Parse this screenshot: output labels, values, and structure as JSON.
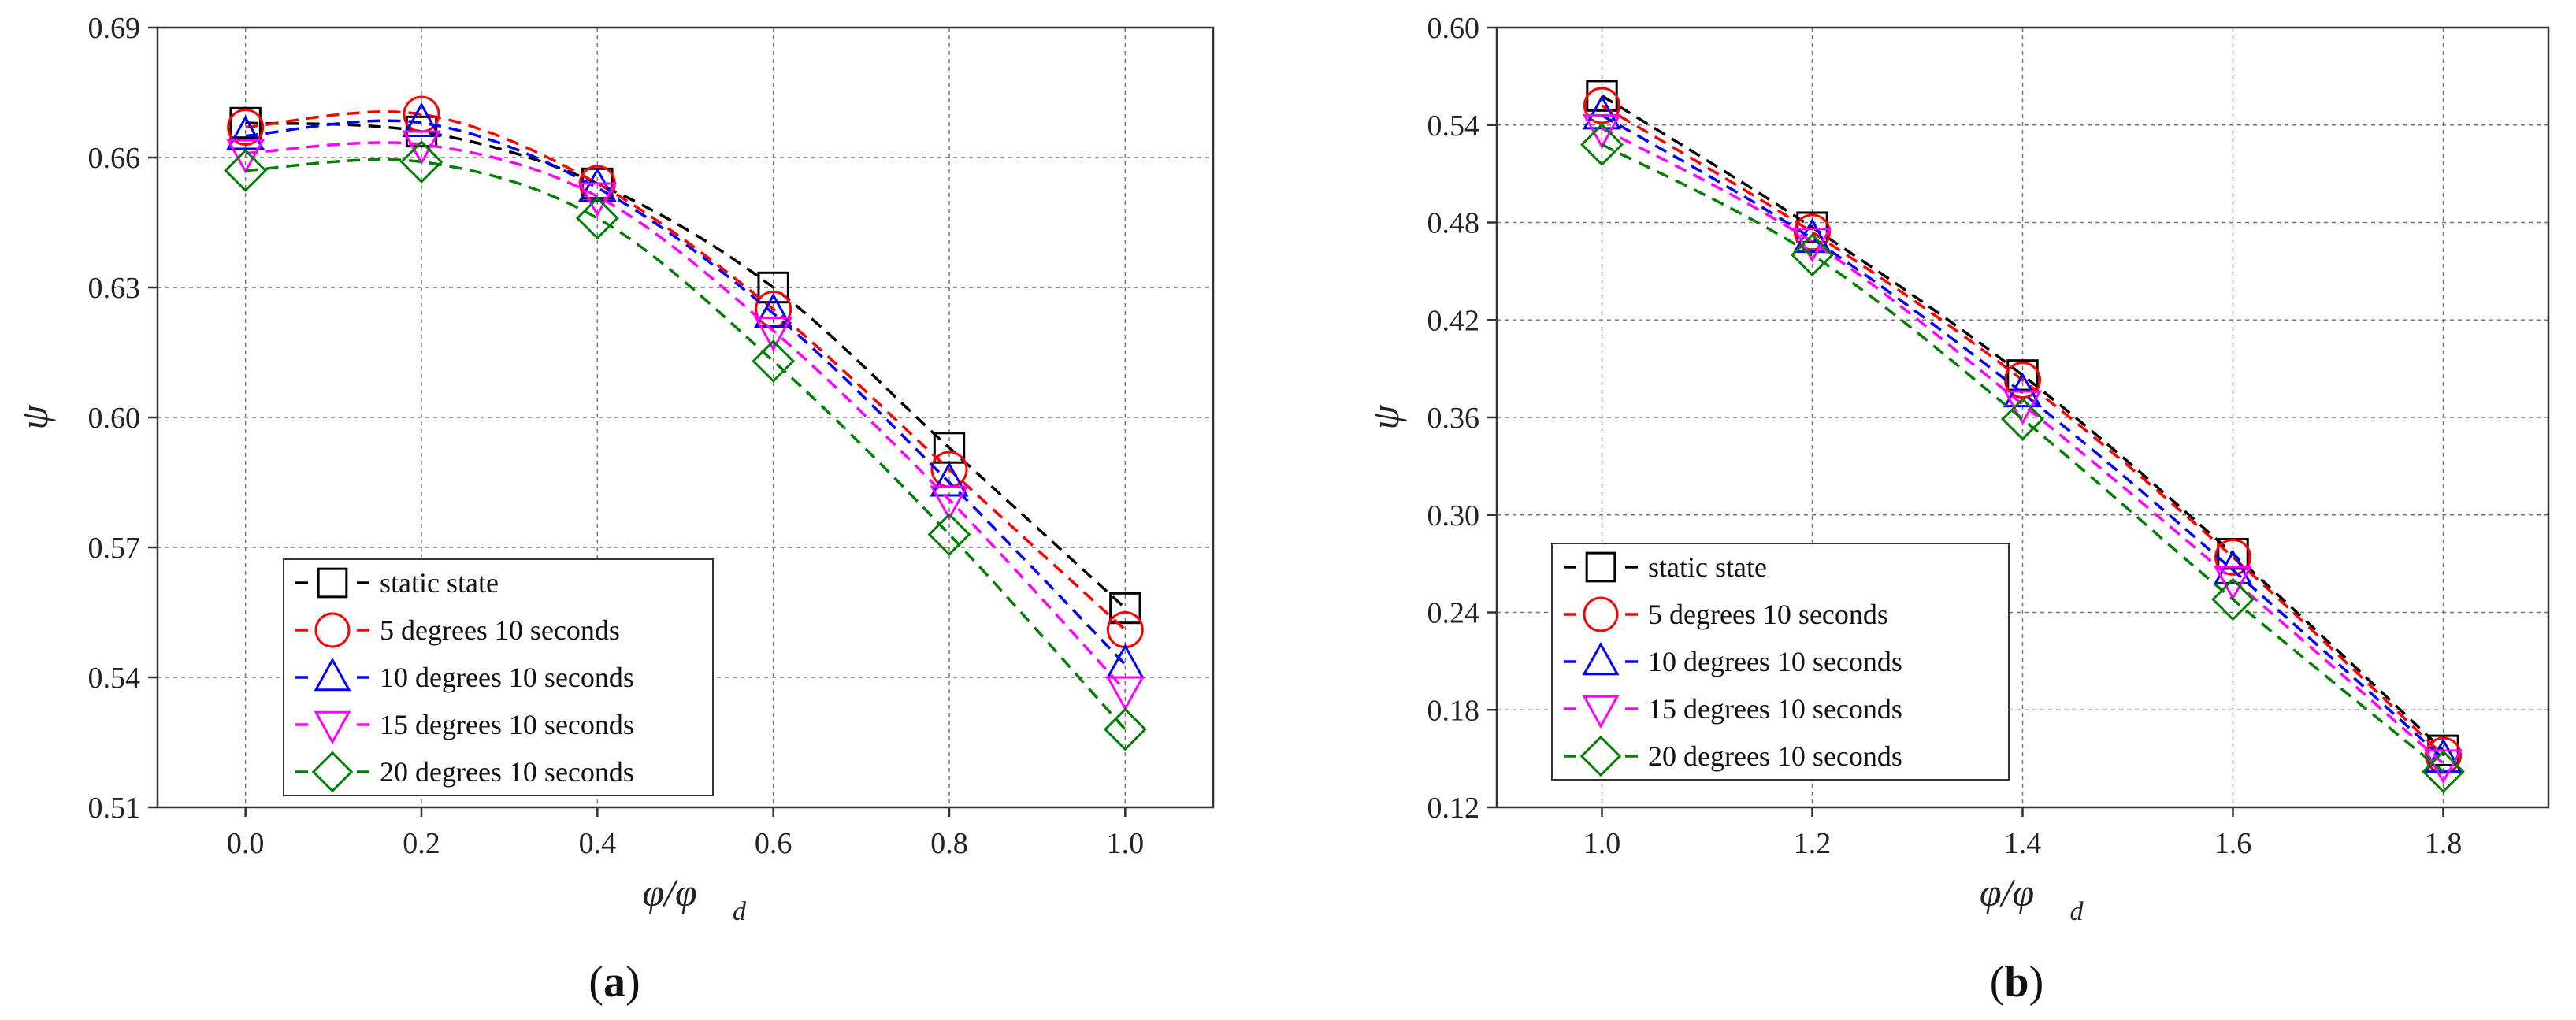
{
  "chart_data": [
    {
      "type": "line",
      "panel_label": "a",
      "xlabel": "φ/φ",
      "xlabel_sub": "d",
      "ylabel": "ψ",
      "x": [
        0.0,
        0.2,
        0.4,
        0.6,
        0.8,
        1.0
      ],
      "xlim": [
        -0.1,
        1.1
      ],
      "ylim": [
        0.51,
        0.69
      ],
      "xticks": [
        "0.0",
        "0.2",
        "0.4",
        "0.6",
        "0.8",
        "1.0"
      ],
      "yticks": [
        "0.51",
        "0.54",
        "0.57",
        "0.60",
        "0.63",
        "0.66",
        "0.69"
      ],
      "grid": true,
      "legend_position": "bottom-left",
      "series": [
        {
          "name": "static state",
          "color": "#000000",
          "marker": "square",
          "values": [
            0.668,
            0.666,
            0.654,
            0.63,
            0.593,
            0.556
          ]
        },
        {
          "name": "5 degrees 10 seconds",
          "color": "#ff0000",
          "marker": "circle",
          "values": [
            0.667,
            0.67,
            0.654,
            0.625,
            0.588,
            0.551
          ]
        },
        {
          "name": "10 degrees 10 seconds",
          "color": "#0000ff",
          "marker": "triangle-up",
          "values": [
            0.665,
            0.668,
            0.653,
            0.624,
            0.585,
            0.543
          ]
        },
        {
          "name": "15 degrees 10 seconds",
          "color": "#ff00ff",
          "marker": "triangle-down",
          "values": [
            0.661,
            0.663,
            0.651,
            0.62,
            0.581,
            0.537
          ]
        },
        {
          "name": "20 degrees 10 seconds",
          "color": "#008000",
          "marker": "diamond",
          "values": [
            0.657,
            0.659,
            0.646,
            0.613,
            0.573,
            0.528
          ]
        }
      ]
    },
    {
      "type": "line",
      "panel_label": "b",
      "xlabel": "φ/φ",
      "xlabel_sub": "d",
      "ylabel": "ψ",
      "x": [
        1.0,
        1.2,
        1.4,
        1.6,
        1.8
      ],
      "xlim": [
        0.9,
        1.9
      ],
      "ylim": [
        0.12,
        0.6
      ],
      "xticks": [
        "1.0",
        "1.2",
        "1.4",
        "1.6",
        "1.8"
      ],
      "yticks": [
        "0.12",
        "0.18",
        "0.24",
        "0.30",
        "0.36",
        "0.42",
        "0.48",
        "0.54",
        "0.60"
      ],
      "grid": true,
      "legend_position": "bottom-left",
      "series": [
        {
          "name": "static state",
          "color": "#000000",
          "marker": "square",
          "values": [
            0.558,
            0.477,
            0.386,
            0.276,
            0.155
          ]
        },
        {
          "name": "5 degrees 10 seconds",
          "color": "#ff0000",
          "marker": "circle",
          "values": [
            0.552,
            0.474,
            0.383,
            0.274,
            0.152
          ]
        },
        {
          "name": "10 degrees 10 seconds",
          "color": "#0000ff",
          "marker": "triangle-up",
          "values": [
            0.546,
            0.47,
            0.375,
            0.266,
            0.15
          ]
        },
        {
          "name": "15 degrees 10 seconds",
          "color": "#ff00ff",
          "marker": "triangle-down",
          "values": [
            0.538,
            0.468,
            0.368,
            0.26,
            0.147
          ]
        },
        {
          "name": "20 degrees 10 seconds",
          "color": "#008000",
          "marker": "diamond",
          "values": [
            0.528,
            0.46,
            0.359,
            0.248,
            0.142
          ]
        }
      ]
    }
  ]
}
